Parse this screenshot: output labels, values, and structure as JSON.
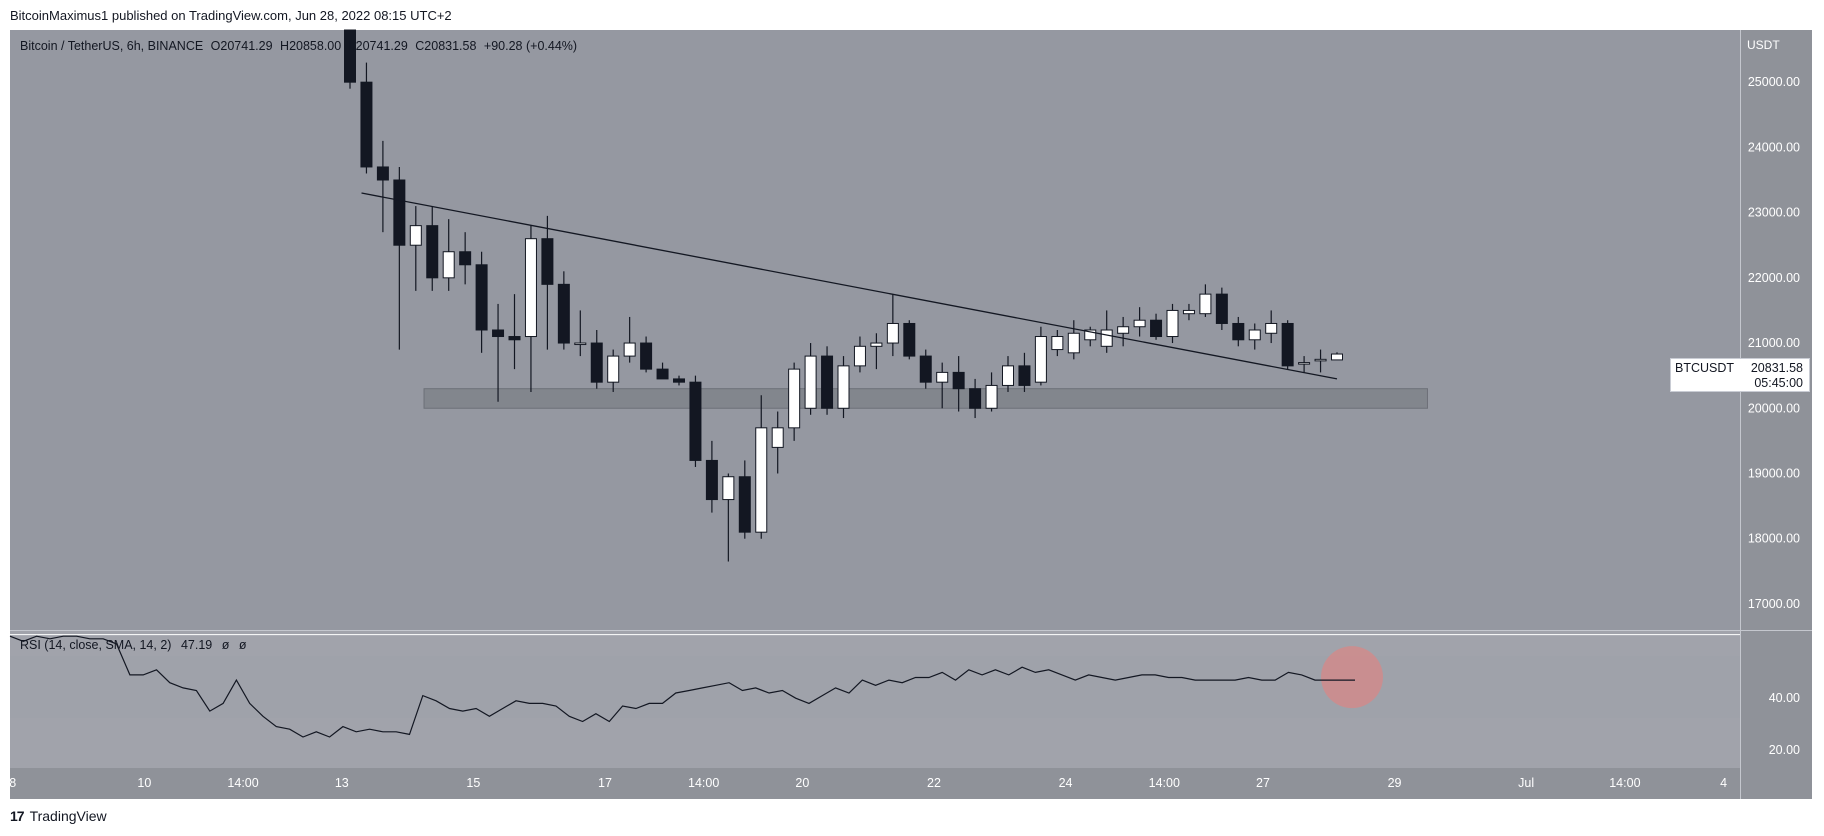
{
  "header": {
    "published": "BitcoinMaximus1 published on TradingView.com, Jun 28, 2022 08:15 UTC+2"
  },
  "legend": {
    "symbol": "Bitcoin / TetherUS, 6h, BINANCE",
    "open_label": "O",
    "open": "20741.29",
    "high_label": "H",
    "high": "20858.00",
    "low_label": "L",
    "low": "20741.29",
    "close_label": "C",
    "close": "20831.58",
    "change": "+90.28 (+0.44%)"
  },
  "rsi_legend": {
    "label": "RSI (14, close, SMA, 14, 2)",
    "value": "47.19",
    "extra1": "ø",
    "extra2": "ø"
  },
  "price_label": {
    "symbol": "BTCUSDT",
    "value": "20831.58",
    "countdown": "05:45:00"
  },
  "currency": "USDT",
  "footer": {
    "logo": "17",
    "brand": "TradingView"
  },
  "colors": {
    "pane_bg": "#9598a1",
    "rsi_bg": "#a1a3ab",
    "rsi_band": "#9fa2aa",
    "axis_bg": "#8f9299",
    "bull": "#ffffff",
    "bear": "#131722",
    "support_zone": "#7f828a",
    "rsi_highlight": "#d38a8a"
  },
  "chart_data": [
    {
      "type": "candlestick",
      "title": "Bitcoin / TetherUS, 6h, BINANCE",
      "ylabel": "USDT",
      "ylim": [
        16600,
        25800
      ],
      "y_ticks": [
        "25000.00",
        "24000.00",
        "23000.00",
        "22000.00",
        "21000.00",
        "20000.00",
        "19000.00",
        "18000.00",
        "17000.00"
      ],
      "y_tick_values": [
        25000,
        24000,
        23000,
        22000,
        21000,
        20000,
        19000,
        18000,
        17000
      ],
      "x_ticks": [
        "8",
        "10",
        "14:00",
        "13",
        "15",
        "17",
        "14:00",
        "20",
        "22",
        "24",
        "14:00",
        "27",
        "29",
        "Jul",
        "14:00",
        "4"
      ],
      "x_tick_index": [
        -20.5,
        -12.5,
        -6.5,
        -0.5,
        7.5,
        15.5,
        21.5,
        27.5,
        35.5,
        43.5,
        49.5,
        55.5,
        63.5,
        71.5,
        77.5,
        83.5
      ],
      "bar_width_index": 1,
      "candles": [
        {
          "o": 25900,
          "h": 26100,
          "l": 24900,
          "c": 25000
        },
        {
          "o": 25000,
          "h": 25300,
          "l": 23600,
          "c": 23700
        },
        {
          "o": 23700,
          "h": 24100,
          "l": 22700,
          "c": 23500
        },
        {
          "o": 23500,
          "h": 23700,
          "l": 20900,
          "c": 22500
        },
        {
          "o": 22500,
          "h": 23100,
          "l": 21800,
          "c": 22800
        },
        {
          "o": 22800,
          "h": 23100,
          "l": 21800,
          "c": 22000
        },
        {
          "o": 22000,
          "h": 22900,
          "l": 21800,
          "c": 22400
        },
        {
          "o": 22400,
          "h": 22700,
          "l": 21900,
          "c": 22200
        },
        {
          "o": 22200,
          "h": 22400,
          "l": 20850,
          "c": 21200
        },
        {
          "o": 21200,
          "h": 21600,
          "l": 20100,
          "c": 21100
        },
        {
          "o": 21100,
          "h": 21750,
          "l": 20600,
          "c": 21050
        },
        {
          "o": 21100,
          "h": 22800,
          "l": 20250,
          "c": 22600
        },
        {
          "o": 22600,
          "h": 22950,
          "l": 20900,
          "c": 21900
        },
        {
          "o": 21900,
          "h": 22100,
          "l": 20900,
          "c": 21000
        },
        {
          "o": 21000,
          "h": 21500,
          "l": 20800,
          "c": 21000
        },
        {
          "o": 21000,
          "h": 21200,
          "l": 20300,
          "c": 20400
        },
        {
          "o": 20400,
          "h": 20900,
          "l": 20250,
          "c": 20800
        },
        {
          "o": 20800,
          "h": 21400,
          "l": 20700,
          "c": 21000
        },
        {
          "o": 21000,
          "h": 21100,
          "l": 20550,
          "c": 20600
        },
        {
          "o": 20600,
          "h": 20700,
          "l": 20450,
          "c": 20450
        },
        {
          "o": 20450,
          "h": 20500,
          "l": 20350,
          "c": 20400
        },
        {
          "o": 20400,
          "h": 20500,
          "l": 19100,
          "c": 19200
        },
        {
          "o": 19200,
          "h": 19500,
          "l": 18400,
          "c": 18600
        },
        {
          "o": 18600,
          "h": 19000,
          "l": 17650,
          "c": 18950
        },
        {
          "o": 18950,
          "h": 19200,
          "l": 18000,
          "c": 18100
        },
        {
          "o": 18100,
          "h": 20200,
          "l": 18000,
          "c": 19700
        },
        {
          "o": 19400,
          "h": 19950,
          "l": 19000,
          "c": 19700
        },
        {
          "o": 19700,
          "h": 20700,
          "l": 19500,
          "c": 20600
        },
        {
          "o": 20000,
          "h": 21000,
          "l": 19900,
          "c": 20800
        },
        {
          "o": 20800,
          "h": 20950,
          "l": 19900,
          "c": 20000
        },
        {
          "o": 20000,
          "h": 20800,
          "l": 19850,
          "c": 20650
        },
        {
          "o": 20650,
          "h": 21100,
          "l": 20550,
          "c": 20950
        },
        {
          "o": 20950,
          "h": 21150,
          "l": 20600,
          "c": 21000
        },
        {
          "o": 21000,
          "h": 21750,
          "l": 20800,
          "c": 21300
        },
        {
          "o": 21300,
          "h": 21350,
          "l": 20750,
          "c": 20800
        },
        {
          "o": 20800,
          "h": 20900,
          "l": 20300,
          "c": 20400
        },
        {
          "o": 20400,
          "h": 20700,
          "l": 20000,
          "c": 20550
        },
        {
          "o": 20550,
          "h": 20800,
          "l": 19950,
          "c": 20300
        },
        {
          "o": 20300,
          "h": 20450,
          "l": 19850,
          "c": 20000
        },
        {
          "o": 20000,
          "h": 20550,
          "l": 19950,
          "c": 20350
        },
        {
          "o": 20350,
          "h": 20800,
          "l": 20250,
          "c": 20650
        },
        {
          "o": 20650,
          "h": 20850,
          "l": 20250,
          "c": 20350
        },
        {
          "o": 20400,
          "h": 21250,
          "l": 20350,
          "c": 21100
        },
        {
          "o": 20900,
          "h": 21200,
          "l": 20800,
          "c": 21100
        },
        {
          "o": 20850,
          "h": 21350,
          "l": 20750,
          "c": 21150
        },
        {
          "o": 21050,
          "h": 21250,
          "l": 20950,
          "c": 21200
        },
        {
          "o": 20950,
          "h": 21500,
          "l": 20850,
          "c": 21200
        },
        {
          "o": 21150,
          "h": 21400,
          "l": 20950,
          "c": 21250
        },
        {
          "o": 21250,
          "h": 21550,
          "l": 21100,
          "c": 21350
        },
        {
          "o": 21350,
          "h": 21450,
          "l": 21050,
          "c": 21100
        },
        {
          "o": 21100,
          "h": 21600,
          "l": 21000,
          "c": 21500
        },
        {
          "o": 21450,
          "h": 21600,
          "l": 21350,
          "c": 21500
        },
        {
          "o": 21450,
          "h": 21900,
          "l": 21400,
          "c": 21750
        },
        {
          "o": 21750,
          "h": 21850,
          "l": 21200,
          "c": 21300
        },
        {
          "o": 21300,
          "h": 21400,
          "l": 20950,
          "c": 21050
        },
        {
          "o": 21050,
          "h": 21300,
          "l": 20900,
          "c": 21200
        },
        {
          "o": 21150,
          "h": 21500,
          "l": 21000,
          "c": 21300
        },
        {
          "o": 21300,
          "h": 21350,
          "l": 20600,
          "c": 20650
        },
        {
          "o": 20700,
          "h": 20800,
          "l": 20550,
          "c": 20700
        },
        {
          "o": 20750,
          "h": 20900,
          "l": 20550,
          "c": 20750
        },
        {
          "o": 20741.29,
          "h": 20858,
          "l": 20741.29,
          "c": 20831.58
        }
      ],
      "trendline": {
        "from": {
          "i": 0.7,
          "p": 23300
        },
        "to": {
          "i": 60,
          "p": 20450
        }
      },
      "support_zone": {
        "from_i": 4.5,
        "to_i": 65.5,
        "p_low": 20000,
        "p_high": 20300
      },
      "current_price": 20831.58
    },
    {
      "type": "line",
      "title": "RSI (14, close, SMA, 14, 2)",
      "ylim": [
        13,
        66
      ],
      "y_ticks": [
        "40.00",
        "20.00"
      ],
      "y_tick_values": [
        40,
        20
      ],
      "band": [
        30,
        70
      ],
      "values": [
        64,
        62,
        64,
        63,
        64,
        64,
        63,
        63,
        61,
        49,
        49,
        51,
        46,
        44,
        43,
        35,
        38,
        47,
        38,
        33,
        29,
        28,
        25,
        27,
        25,
        29,
        27,
        28,
        27,
        27,
        26,
        41,
        39,
        36,
        35,
        36,
        33,
        36,
        39,
        38,
        38,
        37,
        33,
        31,
        34,
        31,
        37,
        36,
        38,
        38,
        42,
        43,
        44,
        45,
        46,
        43,
        44,
        42,
        43,
        40,
        38,
        41,
        44,
        42,
        47,
        45,
        47,
        46,
        48,
        48,
        50,
        47,
        51,
        49,
        51,
        49,
        52,
        50,
        51,
        49,
        47,
        49,
        48,
        47,
        48,
        49,
        49,
        48,
        48,
        47,
        47,
        47,
        47,
        48,
        47,
        47,
        50,
        49,
        47,
        47,
        47,
        47
      ],
      "highlight_index": 101,
      "current": 47.19
    }
  ]
}
